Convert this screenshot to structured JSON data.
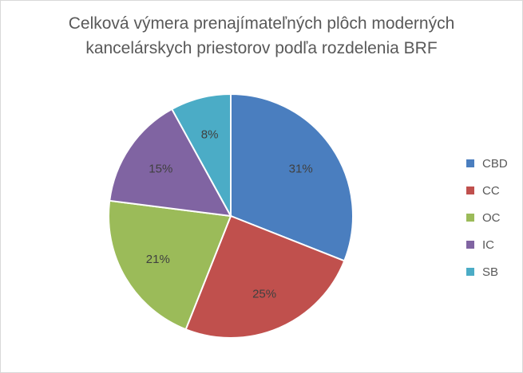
{
  "chart_data": {
    "type": "pie",
    "title_lines": [
      "Celková výmera prenajímateľných plôch moderných",
      "kancelárskych priestorov podľa rozdelenia BRF"
    ],
    "categories": [
      "CBD",
      "CC",
      "OC",
      "IC",
      "SB"
    ],
    "values": [
      31,
      25,
      21,
      15,
      8
    ],
    "labels": [
      "31%",
      "25%",
      "21%",
      "15%",
      "8%"
    ],
    "colors": [
      "#4a7ebf",
      "#c0504d",
      "#9bbb59",
      "#8064a2",
      "#4bacc6"
    ],
    "legend_position": "right"
  }
}
